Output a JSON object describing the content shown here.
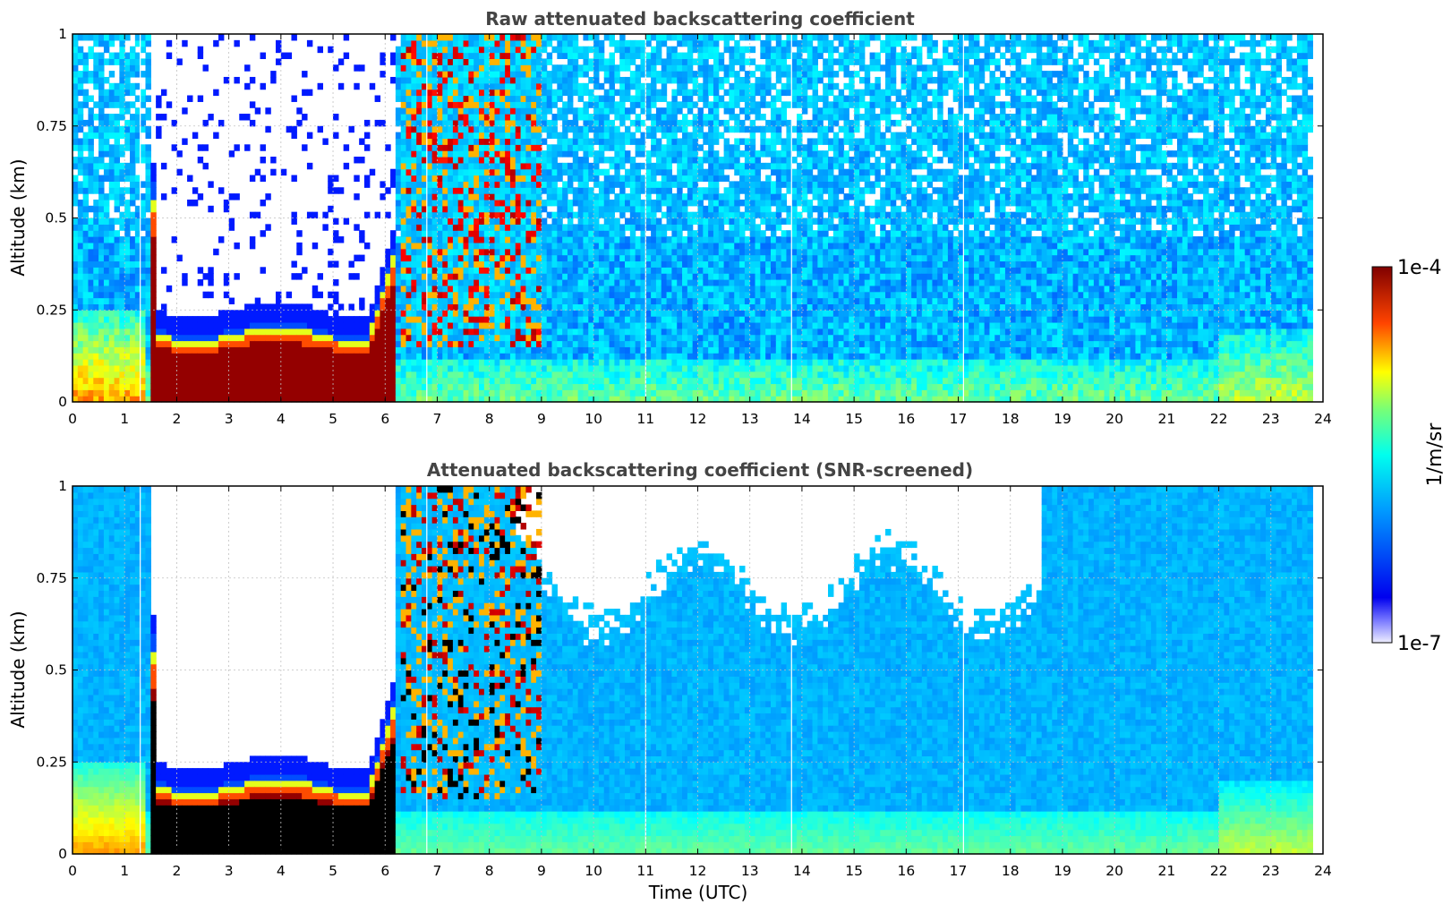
{
  "chart_data": [
    {
      "type": "heatmap",
      "title": "Raw attenuated backscattering coefficient",
      "xlabel": "",
      "ylabel": "Altitude (km)",
      "xlim": [
        0,
        24
      ],
      "ylim": [
        0,
        1
      ],
      "xticks": [
        "0",
        "1",
        "2",
        "3",
        "4",
        "5",
        "6",
        "7",
        "8",
        "9",
        "10",
        "11",
        "12",
        "13",
        "14",
        "15",
        "16",
        "17",
        "18",
        "19",
        "20",
        "21",
        "22",
        "23",
        "24"
      ],
      "yticks": [
        "0",
        "0.25",
        "0.5",
        "0.75",
        "1"
      ],
      "grid": true,
      "screened": false,
      "data_end_time": 23.8,
      "dropout_times": [
        1.3,
        6.8,
        11.0,
        13.8,
        17.1
      ],
      "features": [
        {
          "name": "aerosol layer near ground",
          "time_range": [
            0,
            24
          ],
          "altitude_range": [
            0,
            0.25
          ]
        },
        {
          "name": "strong low layer (max backscatter)",
          "time_range": [
            1.5,
            6.2
          ],
          "altitude_range": [
            0,
            0.22
          ]
        },
        {
          "name": "noisy / no-signal region",
          "time_range": [
            1.5,
            6.2
          ],
          "altitude_range": [
            0.25,
            1
          ]
        },
        {
          "name": "rising layers",
          "time_range": [
            6.2,
            9
          ],
          "altitude_range": [
            0.2,
            1
          ]
        }
      ]
    },
    {
      "type": "heatmap",
      "title": "Attenuated backscattering coefficient (SNR-screened)",
      "xlabel": "Time (UTC)",
      "ylabel": "Altitude (km)",
      "xlim": [
        0,
        24
      ],
      "ylim": [
        0,
        1
      ],
      "xticks": [
        "0",
        "1",
        "2",
        "3",
        "4",
        "5",
        "6",
        "7",
        "8",
        "9",
        "10",
        "11",
        "12",
        "13",
        "14",
        "15",
        "16",
        "17",
        "18",
        "19",
        "20",
        "21",
        "22",
        "23",
        "24"
      ],
      "yticks": [
        "0",
        "0.25",
        "0.5",
        "0.75",
        "1"
      ],
      "grid": true,
      "screened": true,
      "data_end_time": 23.8,
      "dropout_times": [
        1.3,
        6.8,
        11.0,
        13.8,
        17.1
      ],
      "features": [
        {
          "name": "saturated layer (black)",
          "time_range": [
            1.5,
            6.0
          ],
          "altitude_range": [
            0,
            0.22
          ]
        },
        {
          "name": "screened-out region upper",
          "time_range": [
            8.5,
            18.5
          ],
          "altitude_range": [
            0.75,
            1
          ]
        }
      ]
    }
  ],
  "colorbar": {
    "label": "1/m/sr",
    "max_label": "1e-4",
    "min_label": "1e-7",
    "colormap": "jet",
    "scale": "log"
  }
}
